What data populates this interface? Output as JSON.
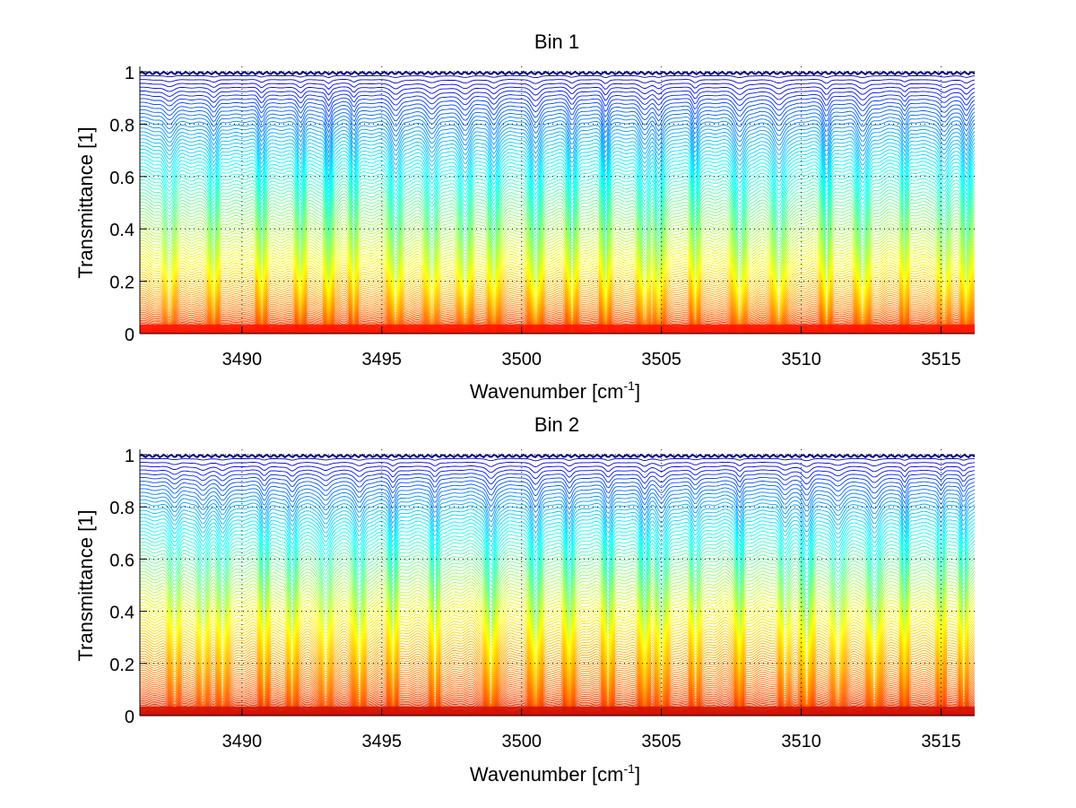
{
  "chart_data": [
    {
      "type": "line",
      "title": "Bin 1",
      "xlabel": "Wavenumber [cm",
      "xlabel_sup": "-1",
      "xlabel_end": "]",
      "ylabel": "Transmittance [1]",
      "xlim": [
        3486.35,
        3516.2
      ],
      "ylim": [
        0,
        1.02
      ],
      "xticks": [
        3490,
        3495,
        3500,
        3505,
        3510,
        3515
      ],
      "xtick_labels": [
        "3490",
        "3495",
        "3500",
        "3505",
        "3510",
        "3515"
      ],
      "yticks": [
        0,
        0.2,
        0.4,
        0.6,
        0.8,
        1
      ],
      "ytick_labels": [
        "0",
        "0.2",
        "0.4",
        "0.6",
        "0.8",
        "1"
      ],
      "grid": true,
      "series_count": 100,
      "series_description": "family of transmittance spectra, colormap jet from blue (T≈1) to red (T≈0)",
      "absorption_lines": [
        3487.4,
        3489.0,
        3490.7,
        3492.1,
        3493.1,
        3494.0,
        3495.5,
        3496.8,
        3498.0,
        3499.0,
        3500.5,
        3501.8,
        3503.0,
        3504.4,
        3504.9,
        3506.2,
        3507.8,
        3509.2,
        3510.9,
        3512.2,
        3513.7,
        3515.1,
        3515.9
      ],
      "colormap": [
        "#00007f",
        "#0000ff",
        "#007fff",
        "#00ffff",
        "#7fff7f",
        "#ffff00",
        "#ff7f00",
        "#ff0000"
      ]
    },
    {
      "type": "line",
      "title": "Bin 2",
      "xlabel": "Wavenumber [cm",
      "xlabel_sup": "-1",
      "xlabel_end": "]",
      "ylabel": "Transmittance [1]",
      "xlim": [
        3486.35,
        3516.2
      ],
      "ylim": [
        0,
        1.02
      ],
      "xticks": [
        3490,
        3495,
        3500,
        3505,
        3510,
        3515
      ],
      "xtick_labels": [
        "3490",
        "3495",
        "3500",
        "3505",
        "3510",
        "3515"
      ],
      "yticks": [
        0,
        0.2,
        0.4,
        0.6,
        0.8,
        1
      ],
      "ytick_labels": [
        "0",
        "0.2",
        "0.4",
        "0.6",
        "0.8",
        "1"
      ],
      "grid": true,
      "series_count": 100,
      "series_description": "family of transmittance spectra, colormap jet from blue (T≈1) to dark red (T≈0)",
      "absorption_lines": [
        3487.6,
        3488.6,
        3489.3,
        3490.8,
        3491.8,
        3493.0,
        3494.2,
        3495.4,
        3496.9,
        3498.9,
        3500.5,
        3501.7,
        3503.1,
        3504.4,
        3505.0,
        3506.2,
        3507.8,
        3509.4,
        3510.2,
        3511.3,
        3512.6,
        3513.7,
        3515.0,
        3515.8
      ],
      "colormap": [
        "#00007f",
        "#0000ff",
        "#007fff",
        "#00ffff",
        "#7fff7f",
        "#ffff00",
        "#ffaa00",
        "#ff5500",
        "#cc0000"
      ]
    }
  ]
}
